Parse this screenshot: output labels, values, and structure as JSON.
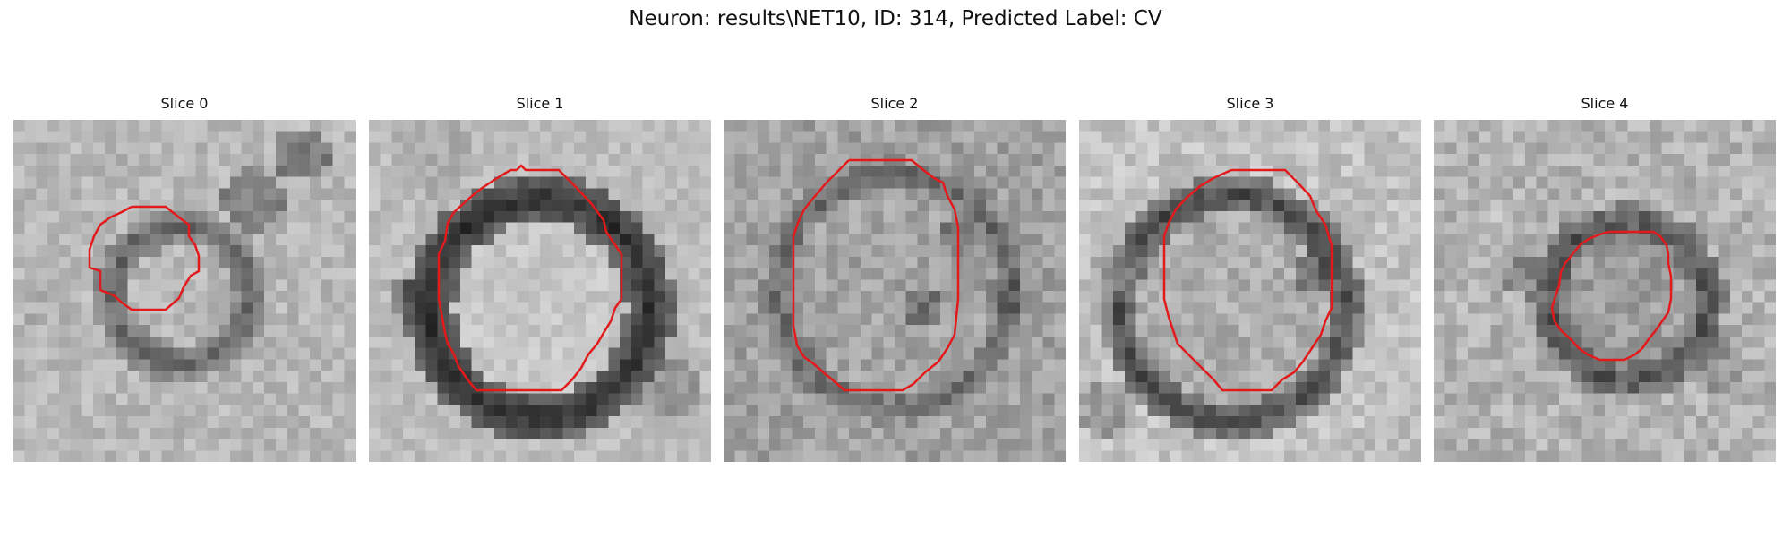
{
  "figure": {
    "title": "Neuron: results\\NET10, ID: 314, Predicted Label: CV"
  },
  "colors": {
    "contour": "#e31a1c",
    "background": "#ffffff"
  },
  "slices": [
    {
      "title": "Slice 0"
    },
    {
      "title": "Slice 1"
    },
    {
      "title": "Slice 2"
    },
    {
      "title": "Slice 3"
    },
    {
      "title": "Slice 4"
    }
  ]
}
